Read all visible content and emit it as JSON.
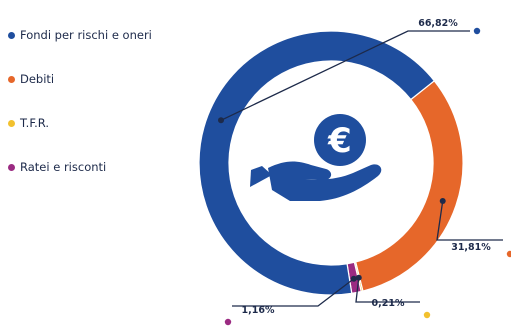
{
  "chart_data": {
    "type": "pie",
    "variant": "donut",
    "title": "",
    "center_icon": "hand-holding-euro-coin-icon",
    "series": [
      {
        "label": "Fondi per rischi e oneri",
        "value": 66.82,
        "value_label": "66,82%",
        "color": "#1f4e9e"
      },
      {
        "label": "Debiti",
        "value": 31.81,
        "value_label": "31,81%",
        "color": "#e6672a"
      },
      {
        "label": "T.F.R.",
        "value": 0.21,
        "value_label": "0,21%",
        "color": "#f2c12e"
      },
      {
        "label": "Ratei e risconti",
        "value": 1.16,
        "value_label": "1,16%",
        "color": "#9b2b82"
      }
    ],
    "legend_position": "left"
  },
  "colors": {
    "icon": "#1f4e9e",
    "text": "#1d2a4a"
  }
}
